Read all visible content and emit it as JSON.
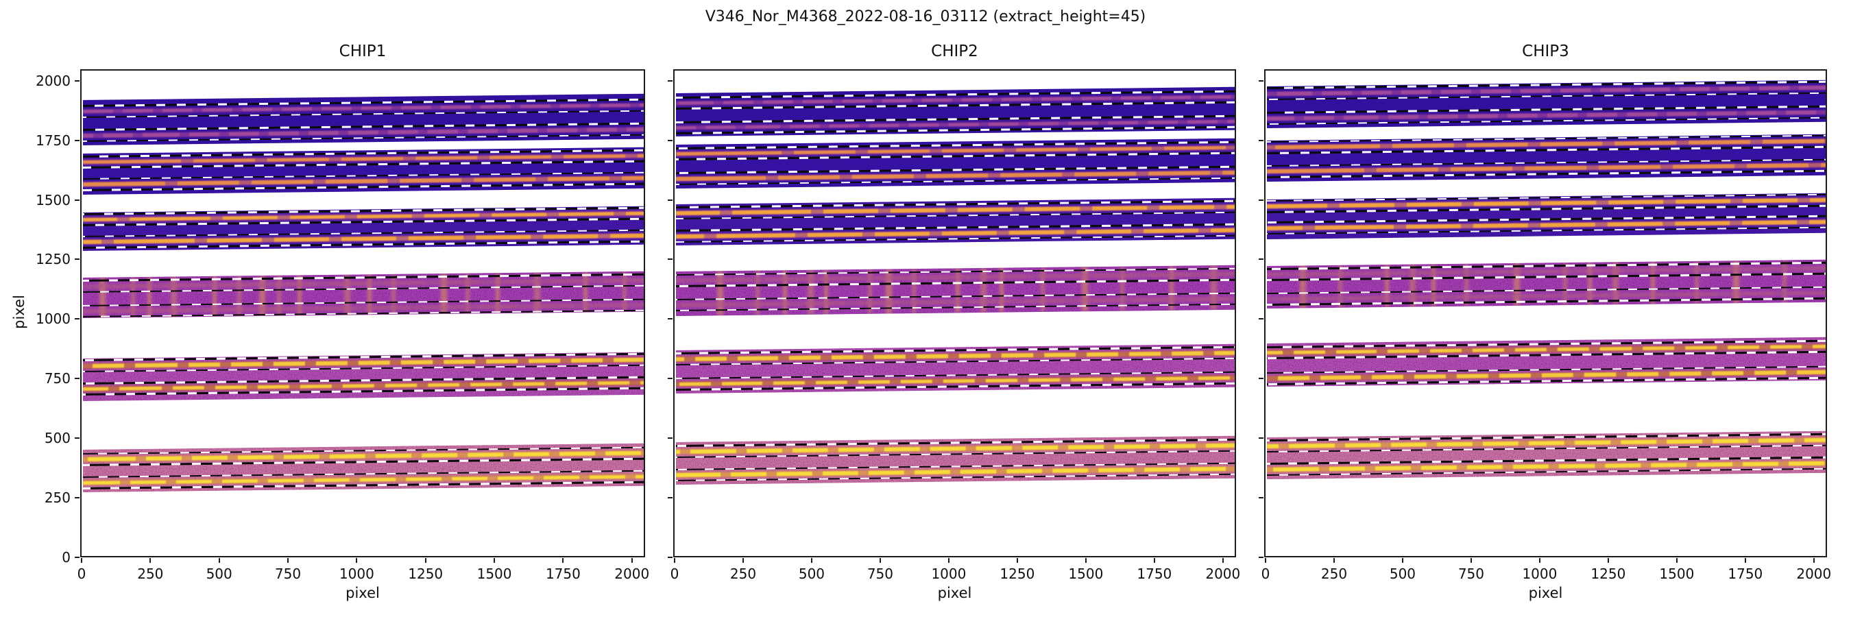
{
  "figure": {
    "suptitle": "V346_Nor_M4368_2022-08-16_03112  (extract_height=45)",
    "background": "#ffffff"
  },
  "chart_data": {
    "type": "heatmap",
    "title": "V346_Nor_M4368_2022-08-16_03112  (extract_height=45)",
    "extract_height": 45,
    "xlabel": "pixel",
    "ylabel": "pixel",
    "xlim": [
      0,
      2048
    ],
    "ylim": [
      0,
      2048
    ],
    "xticks": [
      0,
      250,
      500,
      750,
      1000,
      1250,
      1500,
      1750,
      2000
    ],
    "yticks": [
      0,
      250,
      500,
      750,
      1000,
      1250,
      1500,
      1750,
      2000
    ],
    "grid": false,
    "legend": "none",
    "tilt_deg": -0.65,
    "panels": [
      {
        "title": "CHIP1",
        "orders": [
          {
            "y_range": [
              1736,
              1925
            ],
            "trace_centers": [
              1877,
              1776
            ],
            "style": "order-dark"
          },
          {
            "y_range": [
              1528,
              1700
            ],
            "trace_centers": [
              1664,
              1570
            ],
            "style": "order-dark-orange"
          },
          {
            "y_range": [
              1292,
              1452
            ],
            "trace_centers": [
              1422,
              1328
            ],
            "style": "order-dark-yellow"
          },
          {
            "y_range": [
              1010,
              1180
            ],
            "trace_centers": [
              1143,
              1039
            ],
            "style": "order-mottled",
            "emission_x": [
              60,
              175,
              235,
              320,
              470,
              560,
              640,
              705,
              780,
              950,
              1035,
              1120,
              1300,
              1390,
              1500,
              1640,
              1820,
              1960
            ]
          },
          {
            "y_range": [
              661,
              840
            ],
            "trace_centers": [
              809,
              712
            ],
            "style": "order-pink"
          },
          {
            "y_range": [
              278,
              456
            ],
            "trace_centers": [
              415,
              317
            ],
            "style": "order-hot"
          }
        ]
      },
      {
        "title": "CHIP2",
        "orders": [
          {
            "y_range": [
              1770,
              1952
            ],
            "trace_centers": [
              1910,
              1807
            ],
            "style": "order-dark"
          },
          {
            "y_range": [
              1554,
              1737
            ],
            "trace_centers": [
              1698,
              1594
            ],
            "style": "order-dark-orange"
          },
          {
            "y_range": [
              1315,
              1487
            ],
            "trace_centers": [
              1450,
              1352
            ],
            "style": "order-dark-yellow"
          },
          {
            "y_range": [
              1018,
              1205
            ],
            "trace_centers": [
              1167,
              1064
            ],
            "style": "order-mottled",
            "emission_x": [
              150,
              290,
              390,
              480,
              540,
              700,
              765,
              860,
              1020,
              1110,
              1180,
              1330,
              1480,
              1620,
              1800,
              1950
            ]
          },
          {
            "y_range": [
              694,
              874
            ],
            "trace_centers": [
              837,
              732
            ],
            "style": "order-pink"
          },
          {
            "y_range": [
              312,
              489
            ],
            "trace_centers": [
              449,
              351
            ],
            "style": "order-hot"
          }
        ]
      },
      {
        "title": "CHIP3",
        "orders": [
          {
            "y_range": [
              1806,
              1981
            ],
            "trace_centers": [
              1950,
              1846
            ],
            "style": "order-dark"
          },
          {
            "y_range": [
              1584,
              1756
            ],
            "trace_centers": [
              1727,
              1626
            ],
            "style": "order-dark-orange"
          },
          {
            "y_range": [
              1339,
              1506
            ],
            "trace_centers": [
              1477,
              1386
            ],
            "style": "order-dark-yellow"
          },
          {
            "y_range": [
              1052,
              1229
            ],
            "trace_centers": [
              1193,
              1090
            ],
            "style": "order-mottled",
            "emission_x": [
              120,
              260,
              430,
              520,
              600,
              720,
              900,
              1080,
              1170,
              1260,
              1400,
              1560,
              1700,
              1880
            ]
          },
          {
            "y_range": [
              721,
              903
            ],
            "trace_centers": [
              864,
              756
            ],
            "style": "order-pink"
          },
          {
            "y_range": [
              332,
              508
            ],
            "trace_centers": [
              471,
              373
            ],
            "style": "order-hot"
          }
        ]
      }
    ],
    "styles": {
      "order-dark": {
        "bg": "#2e0f96",
        "halo": "#5c1d96",
        "core": "#a0489a",
        "speckle": 0.16,
        "dash": 44,
        "gap": 14,
        "gap_alpha": 0.5
      },
      "order-dark-orange": {
        "bg": "#31109a",
        "halo": "#7c2b95",
        "core": "#e68a4c",
        "speckle": 0.18,
        "dash": 90,
        "gap": 18,
        "gap_alpha": 0.5
      },
      "order-dark-yellow": {
        "bg": "#3a1499",
        "halo": "#8c3596",
        "core": "#f2a53e",
        "speckle": 0.22,
        "dash": 80,
        "gap": 18,
        "gap_alpha": 0.45
      },
      "order-mottled": {
        "bg": "#7e2e90",
        "halo": "#a04a98",
        "halo_alpha": 0.45,
        "core": "#c06a6a",
        "core_alpha": 0.3,
        "speckle": 0.5,
        "streak": "#e8a050",
        "dash": 60,
        "gap": 20,
        "gap_alpha": 0.6
      },
      "order-pink": {
        "bg": "#8d3a92",
        "halo": "#b65b50",
        "core": "#f6c93c",
        "speckle": 0.52,
        "dash": 46,
        "gap": 16,
        "gap_alpha": 0.15
      },
      "order-hot": {
        "bg": "#aa547e",
        "halo": "#d08156",
        "core": "#f8da3b",
        "speckle": 0.55,
        "dash": 52,
        "gap": 15,
        "gap_alpha": 0.2
      }
    },
    "boundary_line_colors": {
      "dark": "#0b0b0b",
      "light": "#fbfbfb"
    },
    "axis_color": "#1c1c1c"
  }
}
